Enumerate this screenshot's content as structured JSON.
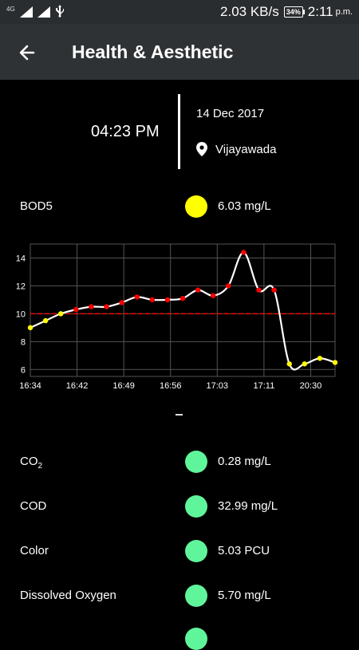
{
  "status_bar": {
    "network_type": "4G",
    "net_speed": "2.03 KB/s",
    "battery": "34%",
    "time": "2:11",
    "ampm": "p.m."
  },
  "app_bar": {
    "title": "Health & Aesthetic",
    "back_icon": "arrow-left-icon"
  },
  "reading": {
    "time": "04:23 PM",
    "date": "14 Dec 2017",
    "location": "Vijayawada"
  },
  "primary_param": {
    "name": "BOD5",
    "value": "6.03 mg/L",
    "status_color": "#ffff00"
  },
  "chart_data": {
    "type": "line",
    "title": "",
    "xlabel": "",
    "ylabel": "",
    "ylim": [
      5.5,
      15
    ],
    "yticks": [
      "14",
      "12",
      "10",
      "8",
      "6"
    ],
    "ytick_values": [
      14,
      12,
      10,
      8,
      6
    ],
    "xtick_labels": [
      "16:34",
      "16:42",
      "16:49",
      "16:56",
      "17:03",
      "17:11",
      "20:30"
    ],
    "threshold": 10,
    "threshold_color": "#ff0000",
    "grid": true,
    "x": [
      0,
      1,
      2,
      3,
      4,
      5,
      6,
      7,
      8,
      9,
      10,
      11,
      12,
      13,
      14,
      15,
      16,
      17,
      18,
      19,
      20
    ],
    "y": [
      9.0,
      9.5,
      10.0,
      10.3,
      10.5,
      10.5,
      10.8,
      11.2,
      11.0,
      11.0,
      11.1,
      11.7,
      11.3,
      12.0,
      14.4,
      11.7,
      11.7,
      6.4,
      6.4,
      6.8,
      6.5
    ],
    "point_colors": [
      "#ffff00",
      "#ffff00",
      "#ffff00",
      "#ff0000",
      "#ff0000",
      "#ff0000",
      "#ff0000",
      "#ff0000",
      "#ff0000",
      "#ff0000",
      "#ff0000",
      "#ff0000",
      "#ff0000",
      "#ff0000",
      "#ff0000",
      "#ff0000",
      "#ff0000",
      "#ffff00",
      "#ffff00",
      "#ffff00",
      "#ffff00"
    ]
  },
  "params": [
    {
      "name": "CO",
      "subscript": "2",
      "value": "0.28 mg/L",
      "status_color": "#5ff59a"
    },
    {
      "name": "COD",
      "subscript": "",
      "value": "32.99 mg/L",
      "status_color": "#5ff59a"
    },
    {
      "name": "Color",
      "subscript": "",
      "value": "5.03 PCU",
      "status_color": "#5ff59a"
    },
    {
      "name": "Dissolved Oxygen",
      "subscript": "",
      "value": "5.70 mg/L",
      "status_color": "#5ff59a"
    }
  ]
}
